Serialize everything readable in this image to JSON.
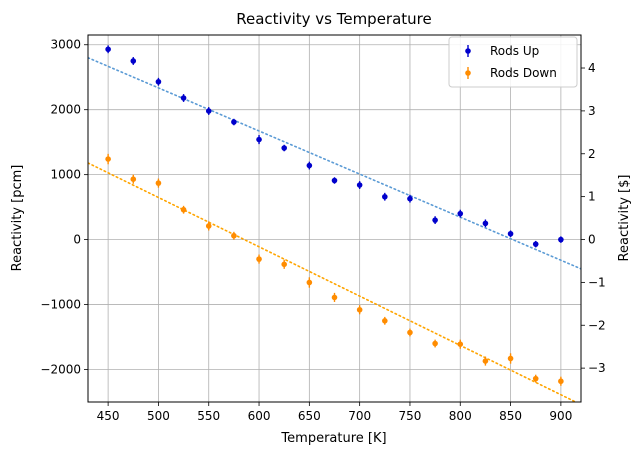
{
  "chart_data": {
    "type": "scatter",
    "title": "Reactivity vs Temperature",
    "xlabel": "Temperature [K]",
    "ylabel": "Reactivity [pcm]",
    "ylabel_right": "Reactivity [$]",
    "xlim": [
      430,
      920
    ],
    "ylim": [
      -2500,
      3150
    ],
    "ylim_right": [
      -3.79,
      4.77
    ],
    "x_ticks": [
      450,
      500,
      550,
      600,
      650,
      700,
      750,
      800,
      850,
      900
    ],
    "y_ticks": [
      -2000,
      -1000,
      0,
      1000,
      2000,
      3000
    ],
    "y_ticks_right": [
      -3,
      -2,
      -1,
      0,
      1,
      2,
      3,
      4
    ],
    "y_tick_labels": [
      "−2000",
      "−1000",
      "0",
      "1000",
      "2000",
      "3000"
    ],
    "y_tick_labels_right": [
      "−3",
      "−2",
      "−1",
      "0",
      "1",
      "2",
      "3",
      "4"
    ],
    "grid": true,
    "legend_position": "top-right",
    "x": [
      450,
      475,
      500,
      525,
      550,
      575,
      600,
      625,
      650,
      675,
      700,
      725,
      750,
      775,
      800,
      825,
      850,
      875,
      900
    ],
    "series": [
      {
        "name": "Rods Up",
        "color": "#0000cc",
        "marker": "circle",
        "values": [
          2930,
          2750,
          2430,
          2180,
          1980,
          1810,
          1540,
          1410,
          1140,
          910,
          840,
          660,
          630,
          300,
          400,
          250,
          90,
          -70,
          0
        ],
        "errors": [
          60,
          60,
          60,
          60,
          60,
          50,
          70,
          50,
          60,
          50,
          60,
          60,
          60,
          60,
          60,
          60,
          50,
          50,
          50
        ],
        "fit": {
          "color": "#5b9bd5",
          "style": "dotted",
          "x": [
            430,
            920
          ],
          "y": [
            2800,
            -450
          ]
        }
      },
      {
        "name": "Rods Down",
        "color": "#ff8c00",
        "marker": "circle",
        "values": [
          1240,
          930,
          870,
          460,
          210,
          60,
          -300,
          -380,
          -660,
          -890,
          -1080,
          -1250,
          -1430,
          -1600,
          -1610,
          -1870,
          -1830,
          -2140,
          -2180
        ],
        "errors": [
          80,
          70,
          70,
          60,
          70,
          60,
          70,
          70,
          80,
          70,
          70,
          60,
          60,
          60,
          70,
          70,
          80,
          60,
          70
        ],
        "fit": {
          "color": "#ffa500",
          "style": "dotted",
          "x": [
            430,
            920
          ],
          "y": [
            1180,
            -2540
          ]
        }
      }
    ]
  }
}
